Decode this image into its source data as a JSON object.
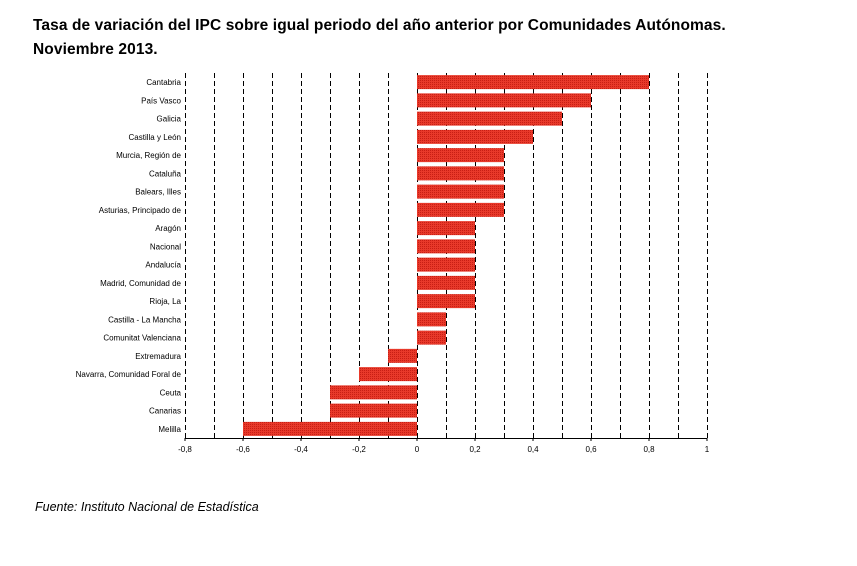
{
  "title_line1": "Tasa de variación del IPC sobre igual periodo del año anterior por Comunidades Autónomas.",
  "title_line2": "Noviembre 2013.",
  "source": "Fuente: Instituto Nacional de Estadística",
  "colors": {
    "bar": "#e8392a",
    "bar_dots": "#c81e14",
    "grid": "#000000"
  },
  "chart_data": {
    "type": "bar",
    "orientation": "horizontal",
    "title": "Tasa de variación del IPC sobre igual periodo del año anterior por Comunidades Autónomas. Noviembre 2013.",
    "xlabel": "",
    "ylabel": "",
    "xlim": [
      -0.8,
      1
    ],
    "grid": "vertical dashed every 0.1",
    "categories": [
      "Cantabria",
      "País Vasco",
      "Galicia",
      "Castilla y León",
      "Murcia, Región de",
      "Cataluña",
      "Balears, Illes",
      "Asturias, Principado de",
      "Aragón",
      "Nacional",
      "Andalucía",
      "Madrid, Comunidad de",
      "Rioja, La",
      "Castilla - La Mancha",
      "Comunitat Valenciana",
      "Extremadura",
      "Navarra, Comunidad Foral de",
      "Ceuta",
      "Canarias",
      "Melilla"
    ],
    "values": [
      0.8,
      0.6,
      0.5,
      0.4,
      0.3,
      0.3,
      0.3,
      0.3,
      0.2,
      0.2,
      0.2,
      0.2,
      0.2,
      0.1,
      0.1,
      -0.1,
      -0.2,
      -0.3,
      -0.3,
      -0.6
    ],
    "xticks": [
      "-0,8",
      "-0,6",
      "-0,4",
      "-0,2",
      "0",
      "0,2",
      "0,4",
      "0,6",
      "0,8",
      "1"
    ]
  }
}
